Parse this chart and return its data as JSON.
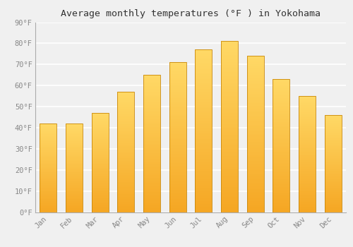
{
  "title": "Average monthly temperatures (°F ) in Yokohama",
  "months": [
    "Jan",
    "Feb",
    "Mar",
    "Apr",
    "May",
    "Jun",
    "Jul",
    "Aug",
    "Sep",
    "Oct",
    "Nov",
    "Dec"
  ],
  "values": [
    42,
    42,
    47,
    57,
    65,
    71,
    77,
    81,
    74,
    63,
    55,
    46
  ],
  "bar_color_top": "#FFD966",
  "bar_color_bottom": "#F5A623",
  "bar_edge_color": "#C8870A",
  "background_color": "#f0f0f0",
  "grid_color": "#ffffff",
  "ylim": [
    0,
    90
  ],
  "yticks": [
    0,
    10,
    20,
    30,
    40,
    50,
    60,
    70,
    80,
    90
  ],
  "title_fontsize": 9.5,
  "tick_fontsize": 7.5,
  "tick_color": "#888888",
  "font_family": "monospace"
}
